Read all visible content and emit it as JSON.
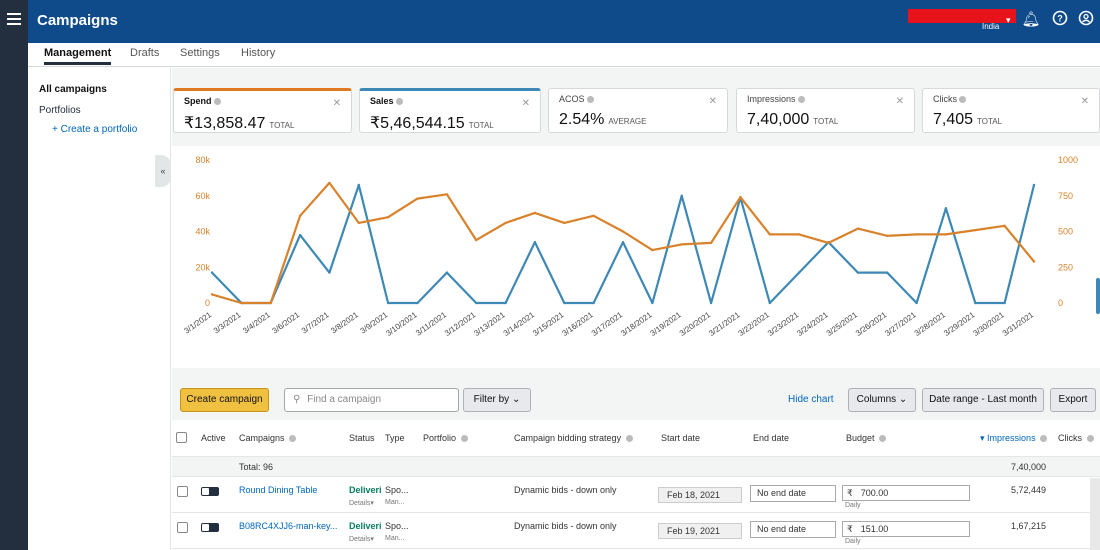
{
  "header": {
    "app_title": "Campaigns",
    "country": "India",
    "icons": [
      "menu-icon",
      "bell-icon",
      "help-icon",
      "account-icon"
    ]
  },
  "subnav": {
    "tabs": [
      {
        "label": "Management",
        "active": true
      },
      {
        "label": "Drafts",
        "active": false
      },
      {
        "label": "Settings",
        "active": false
      },
      {
        "label": "History",
        "active": false
      }
    ]
  },
  "sidebar": {
    "all_campaigns": "All campaigns",
    "portfolios": "Portfolios",
    "create_portfolio": "+ Create a portfolio",
    "collapse": "«"
  },
  "metrics": [
    {
      "label": "Spend",
      "value": "₹13,858.47",
      "sub": "TOTAL"
    },
    {
      "label": "Sales",
      "value": "₹5,46,544.15",
      "sub": "TOTAL"
    },
    {
      "label": "ACOS",
      "value": "2.54%",
      "sub": "AVERAGE"
    },
    {
      "label": "Impressions",
      "value": "7,40,000",
      "sub": "TOTAL"
    },
    {
      "label": "Clicks",
      "value": "7,405",
      "sub": "TOTAL"
    }
  ],
  "colors": {
    "spend_line": "#d9822b",
    "sales_line": "#3e88b6",
    "header_blue": "#0f4b8a",
    "create_button": "#f0c040"
  },
  "chart_data": {
    "type": "line",
    "x": [
      "3/1/2021",
      "3/3/2021",
      "3/4/2021",
      "3/6/2021",
      "3/7/2021",
      "3/8/2021",
      "3/9/2021",
      "3/10/2021",
      "3/11/2021",
      "3/12/2021",
      "3/13/2021",
      "3/14/2021",
      "3/15/2021",
      "3/16/2021",
      "3/17/2021",
      "3/18/2021",
      "3/19/2021",
      "3/20/2021",
      "3/21/2021",
      "3/22/2021",
      "3/23/2021",
      "3/24/2021",
      "3/25/2021",
      "3/26/2021",
      "3/27/2021",
      "3/28/2021",
      "3/29/2021",
      "3/30/2021",
      "3/31/2021"
    ],
    "series": [
      {
        "axis": "left",
        "color": "#3e88b6",
        "values": [
          17000,
          0,
          0,
          38000,
          17000,
          66000,
          0,
          0,
          17000,
          0,
          0,
          34000,
          0,
          0,
          34000,
          0,
          60000,
          0,
          59000,
          0,
          17000,
          34000,
          17000,
          17000,
          0,
          53000,
          0,
          0,
          66000
        ]
      },
      {
        "axis": "right",
        "color": "#d9822b",
        "values": [
          60,
          0,
          0,
          610,
          840,
          560,
          600,
          730,
          760,
          440,
          560,
          630,
          560,
          610,
          500,
          370,
          410,
          420,
          740,
          480,
          480,
          420,
          520,
          470,
          480,
          480,
          510,
          540,
          290
        ]
      }
    ],
    "y_left_ticks": [
      "80k",
      "60k",
      "40k",
      "20k",
      "0"
    ],
    "y_right_ticks": [
      "1000",
      "750",
      "500",
      "250",
      "0"
    ],
    "ylim_left": [
      0,
      80000
    ],
    "ylim_right": [
      0,
      1000
    ],
    "grid": false
  },
  "toolbar": {
    "create_campaign": "Create campaign",
    "search_placeholder": "Find a campaign",
    "filter_by": "Filter by",
    "hide_chart": "Hide chart",
    "columns": "Columns",
    "date_range": "Date range - Last month",
    "export": "Export"
  },
  "table": {
    "headers": {
      "active": "Active",
      "campaigns": "Campaigns",
      "status": "Status",
      "type": "Type",
      "portfolio": "Portfolio",
      "bidding": "Campaign bidding strategy",
      "start": "Start date",
      "end": "End date",
      "budget": "Budget",
      "impressions": "Impressions",
      "clicks": "Clicks"
    },
    "total_label": "Total: 96",
    "total_impressions": "7,40,000",
    "rows": [
      {
        "name": "Round Dining Table",
        "status": "Deliveri",
        "status_sub": "Details",
        "type": "Spo...",
        "type_sub": "Man...",
        "bidding": "Dynamic bids - down only",
        "start": "Feb 18, 2021",
        "end": "No end date",
        "currency": "₹",
        "budget": "700.00",
        "budget_period": "Daily",
        "impressions": "5,72,449"
      },
      {
        "name": "B08RC4XJJ6-man-key...",
        "status": "Deliveri",
        "status_sub": "Details",
        "type": "Spo...",
        "type_sub": "Man...",
        "bidding": "Dynamic bids - down only",
        "start": "Feb 19, 2021",
        "end": "No end date",
        "currency": "₹",
        "budget": "151.00",
        "budget_period": "Daily",
        "impressions": "1,67,215"
      }
    ]
  }
}
